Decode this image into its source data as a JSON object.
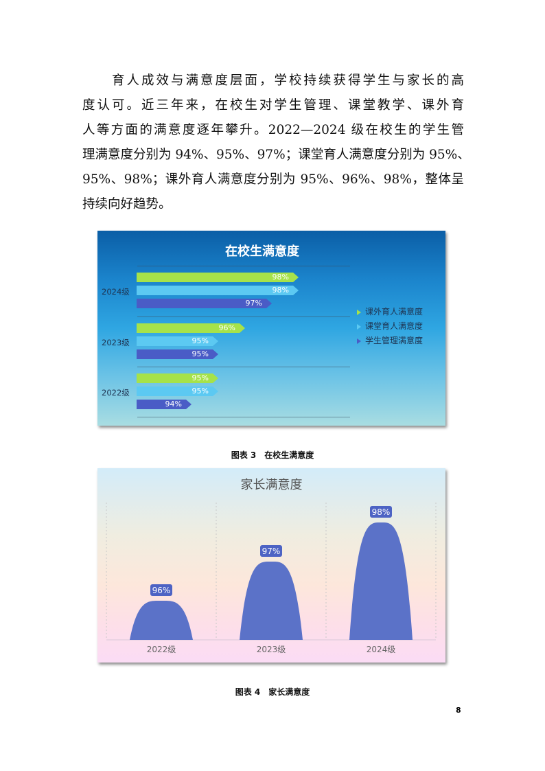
{
  "paragraph": {
    "lines": [
      "育人成效与满意度层面，学校持续获得学生与家长的高",
      "度认可。近三年来，在校生对学生管理、课堂教学、课外育",
      "人等方面的满意度逐年攀升。2022—2024 级在校生的学生管",
      "理满意度分别为 94%、95%、97%；课堂育人满意度分别为 95%、",
      "95%、98%；课外育人满意度分别为 95%、96%、98%，整体呈",
      "持续向好趋势。"
    ]
  },
  "chart_data": [
    {
      "type": "bar",
      "orientation": "horizontal",
      "title": "在校生满意度",
      "categories": [
        "2024级",
        "2023级",
        "2022级"
      ],
      "series": [
        {
          "name": "课外育人满意度",
          "values": [
            98,
            96,
            95
          ],
          "color": "#a6e24a"
        },
        {
          "name": "课堂育人满意度",
          "values": [
            98,
            95,
            95
          ],
          "color": "#5cc9f2"
        },
        {
          "name": "学生管理满意度",
          "values": [
            97,
            95,
            94
          ],
          "color": "#4a5cc6"
        }
      ],
      "data_labels": [
        [
          "98%",
          "96%",
          "95%"
        ],
        [
          "98%",
          "95%",
          "95%"
        ],
        [
          "97%",
          "95%",
          "94%"
        ]
      ],
      "xlim": [
        92,
        100
      ],
      "legend": "right",
      "grid": false
    },
    {
      "type": "bar",
      "shape": "hump",
      "title": "家长满意度",
      "categories": [
        "2022级",
        "2023级",
        "2024级"
      ],
      "values": [
        96,
        97,
        98
      ],
      "data_labels": [
        "96%",
        "97%",
        "98%"
      ],
      "ylim": [
        95,
        100
      ],
      "color": "#5b72c8",
      "grid": true
    }
  ],
  "captions": {
    "fig3": "图表 3　在校生满意度",
    "fig4": "图表 4　家长满意度"
  },
  "page_number": "8"
}
